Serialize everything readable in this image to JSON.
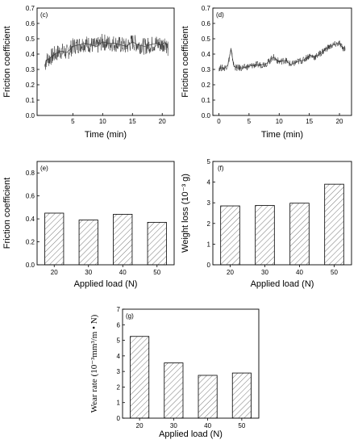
{
  "chart_data": [
    {
      "panel": "(c)",
      "type": "line",
      "xlabel": "Time (min)",
      "ylabel": "Friction coefficient",
      "xlim": [
        -1,
        22
      ],
      "ylim": [
        0.0,
        0.7
      ],
      "xticks": [
        5,
        10,
        15,
        20
      ],
      "yticks": [
        0.0,
        0.1,
        0.2,
        0.3,
        0.4,
        0.5,
        0.6,
        0.7
      ],
      "ytick_labels": [
        "0.0",
        "0.1",
        "0.2",
        "0.3",
        "0.4",
        "0.5",
        "0.6",
        "0.7"
      ],
      "series": [
        {
          "x": [
            0.3,
            0.5,
            1,
            2,
            3,
            4,
            5,
            6,
            7,
            8,
            9,
            10,
            11,
            12,
            13,
            14,
            15,
            16,
            17,
            18,
            19,
            20,
            20.5,
            21
          ],
          "y": [
            0.32,
            0.36,
            0.37,
            0.4,
            0.42,
            0.41,
            0.45,
            0.46,
            0.47,
            0.46,
            0.45,
            0.48,
            0.47,
            0.47,
            0.46,
            0.45,
            0.48,
            0.46,
            0.45,
            0.46,
            0.47,
            0.46,
            0.48,
            0.43
          ]
        }
      ]
    },
    {
      "panel": "(d)",
      "type": "line",
      "xlabel": "Time (min)",
      "ylabel": "Friction coefficient",
      "xlim": [
        -1,
        22
      ],
      "ylim": [
        0.0,
        0.7
      ],
      "xticks": [
        0,
        5,
        10,
        15,
        20
      ],
      "yticks": [
        0.0,
        0.1,
        0.2,
        0.3,
        0.4,
        0.5,
        0.6,
        0.7
      ],
      "ytick_labels": [
        "0.0",
        "0.1",
        "0.2",
        "0.3",
        "0.4",
        "0.5",
        "0.6",
        "0.7"
      ],
      "series": [
        {
          "x": [
            0,
            0.5,
            1,
            1.5,
            2,
            2.5,
            3,
            4,
            5,
            6,
            7,
            8,
            9,
            10,
            11,
            12,
            13,
            14,
            15,
            16,
            17,
            18,
            19,
            20,
            20.5,
            21
          ],
          "y": [
            0.31,
            0.31,
            0.31,
            0.33,
            0.43,
            0.32,
            0.31,
            0.31,
            0.32,
            0.33,
            0.33,
            0.34,
            0.38,
            0.35,
            0.36,
            0.33,
            0.35,
            0.36,
            0.39,
            0.38,
            0.41,
            0.44,
            0.46,
            0.47,
            0.44,
            0.44
          ]
        }
      ]
    },
    {
      "panel": "(e)",
      "type": "bar",
      "categories": [
        "20",
        "30",
        "40",
        "50"
      ],
      "values": [
        0.45,
        0.39,
        0.44,
        0.37
      ],
      "xlabel": "Applied load (N)",
      "ylabel": "Friction coefficient",
      "ylim": [
        0.0,
        0.9
      ],
      "yticks": [
        0.0,
        0.2,
        0.4,
        0.6,
        0.8
      ],
      "ytick_labels": [
        "0.0",
        "0.2",
        "0.4",
        "0.6",
        "0.8"
      ]
    },
    {
      "panel": "(f)",
      "type": "bar",
      "categories": [
        "20",
        "30",
        "40",
        "50"
      ],
      "values": [
        2.85,
        2.87,
        2.98,
        3.9
      ],
      "xlabel": "Applied load (N)",
      "ylabel": "Weight loss (10⁻³ g)",
      "ylim": [
        0,
        5
      ],
      "yticks": [
        0,
        1,
        2,
        3,
        4,
        5
      ],
      "ytick_labels": [
        "0",
        "1",
        "2",
        "3",
        "4",
        "5"
      ]
    },
    {
      "panel": "(g)",
      "type": "bar",
      "categories": [
        "20",
        "30",
        "40",
        "50"
      ],
      "values": [
        5.25,
        3.55,
        2.75,
        2.9
      ],
      "xlabel": "Applied load (N)",
      "ylabel": "Wear rate (10⁻³mm³/m • N)",
      "ylim": [
        0,
        7
      ],
      "yticks": [
        0,
        1,
        2,
        3,
        4,
        5,
        6,
        7
      ],
      "ytick_labels": [
        "0",
        "1",
        "2",
        "3",
        "4",
        "5",
        "6",
        "7"
      ]
    }
  ],
  "style": {
    "line_color": "#333333",
    "axis_color": "#000000",
    "bar_fill": "#ffffff",
    "hatch_color": "#555555"
  }
}
